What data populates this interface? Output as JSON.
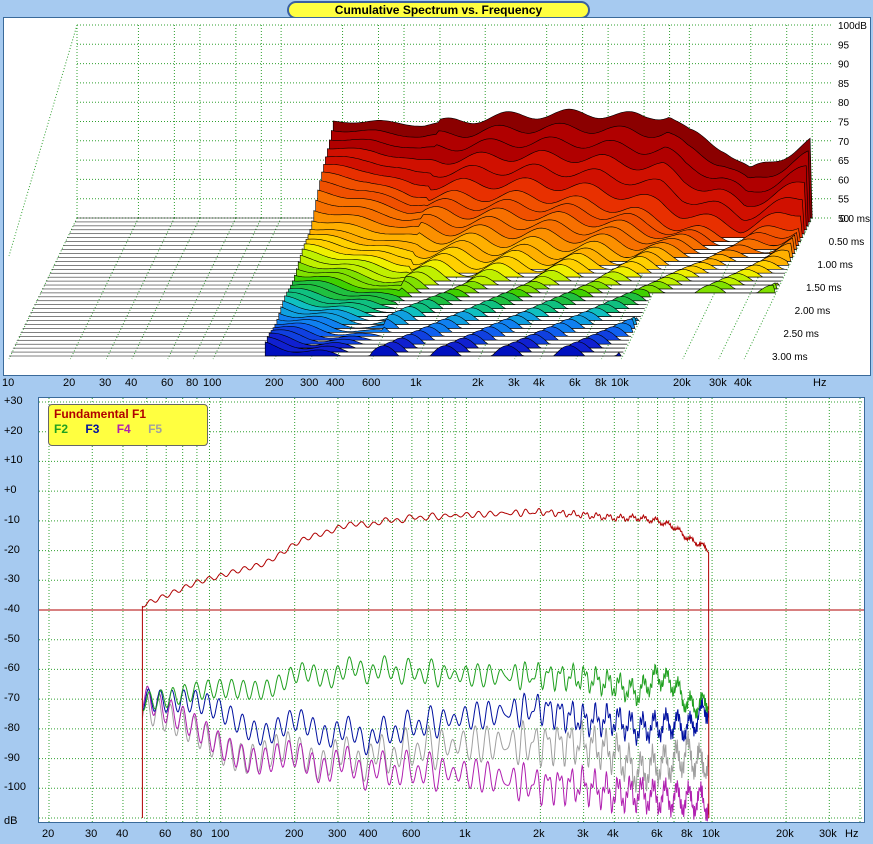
{
  "title": "Cumulative Spectrum vs. Frequency",
  "waterfall": {
    "db_labels": [
      "100dB",
      "95",
      "90",
      "85",
      "80",
      "75",
      "70",
      "65",
      "60",
      "55",
      "50"
    ],
    "time_labels": [
      "0.0 ms",
      "0.50 ms",
      "1.00 ms",
      "1.50 ms",
      "2.00 ms",
      "2.50 ms",
      "3.00 ms"
    ],
    "freq_labels": [
      "10",
      "20",
      "30",
      "40",
      "60",
      "80",
      "100",
      "200",
      "300",
      "400",
      "600",
      "1k",
      "2k",
      "3k",
      "4k",
      "6k",
      "8k",
      "10k",
      "20k",
      "30k",
      "40k",
      "Hz"
    ]
  },
  "distortion": {
    "y_labels": [
      "+30",
      "+20",
      "+10",
      "+0",
      "-10",
      "-20",
      "-30",
      "-40",
      "-50",
      "-60",
      "-70",
      "-80",
      "-90",
      "-100",
      "dB"
    ],
    "x_labels": [
      "20",
      "30",
      "40",
      "60",
      "80",
      "100",
      "200",
      "300",
      "400",
      "600",
      "1k",
      "2k",
      "3k",
      "4k",
      "6k",
      "8k",
      "10k",
      "20k",
      "30k",
      "Hz"
    ],
    "legend": {
      "f1": "Fundamental F1",
      "f2": "F2",
      "f3": "F3",
      "f4": "F4",
      "f5": "F5"
    }
  },
  "colors": {
    "f1": "#b00000",
    "f2": "#20a020",
    "f3": "#0010a0",
    "f4": "#b020b0",
    "f5": "#a0a0a0",
    "grid": "#30a030",
    "legend_bg": "#ffff40"
  },
  "chart_data": [
    {
      "type": "area",
      "title": "Cumulative Spectrum vs. Frequency",
      "xlabel": "Hz",
      "ylabel": "dB",
      "xscale": "log",
      "xlim": [
        10,
        50000
      ],
      "ylim": [
        50,
        100
      ],
      "series": [
        {
          "name": "0.0 ms",
          "x": [
            180,
            300,
            500,
            1000,
            2000,
            4000,
            6000,
            8000,
            10000,
            15000,
            20000,
            40000
          ],
          "values": [
            75,
            75,
            74,
            76,
            77,
            77,
            76,
            77,
            72,
            68,
            62,
            70
          ]
        },
        {
          "name": "0.50 ms",
          "x": [
            180,
            300,
            500,
            1000,
            2000,
            4000,
            6000,
            8000,
            10000,
            15000,
            20000,
            40000
          ],
          "values": [
            68,
            66,
            62,
            62,
            62,
            60,
            58,
            56,
            54,
            52,
            51,
            55
          ]
        },
        {
          "name": "1.00 ms",
          "x": [
            180,
            300,
            500,
            1000,
            2000,
            4000,
            6000,
            8000,
            10000,
            15000,
            20000,
            40000
          ],
          "values": [
            60,
            58,
            56,
            55,
            54,
            53,
            52,
            52,
            51,
            50,
            50,
            51
          ]
        },
        {
          "name": "1.50 ms",
          "x": [
            180,
            300,
            500,
            1000,
            2000,
            4000,
            6000,
            8000,
            10000
          ],
          "values": [
            57,
            55,
            52,
            50,
            50,
            50,
            50,
            50,
            50
          ]
        },
        {
          "name": "2.00 ms",
          "x": [
            180,
            300,
            500,
            1000,
            2000,
            4000,
            6000,
            8000,
            10000
          ],
          "values": [
            55,
            53,
            51,
            50,
            50,
            50,
            50,
            50,
            50
          ]
        },
        {
          "name": "2.50 ms",
          "x": [
            180,
            300,
            500,
            1000,
            2000,
            4000,
            6000,
            8000,
            10000
          ],
          "values": [
            54,
            52,
            50,
            50,
            50,
            50,
            50,
            50,
            50
          ]
        },
        {
          "name": "3.00 ms",
          "x": [
            180,
            300,
            500,
            1000,
            2000,
            4000,
            6000,
            8000,
            10000
          ],
          "values": [
            53,
            51,
            50,
            50,
            50,
            50,
            50,
            50,
            50
          ]
        }
      ]
    },
    {
      "type": "line",
      "xlabel": "Hz",
      "ylabel": "dB",
      "xscale": "log",
      "xlim": [
        20,
        40000
      ],
      "ylim": [
        -110,
        30
      ],
      "x": [
        48,
        60,
        80,
        100,
        150,
        200,
        300,
        400,
        600,
        1000,
        2000,
        3000,
        4000,
        5000,
        6000,
        7000,
        8000,
        9000,
        9700
      ],
      "series": [
        {
          "name": "Fundamental F1",
          "values": [
            -38,
            -35,
            -31,
            -29,
            -24,
            -18,
            -12,
            -11,
            -9,
            -8,
            -7,
            -8,
            -9,
            -9,
            -10,
            -12,
            -16,
            -18,
            -20
          ]
        },
        {
          "name": "F2",
          "values": [
            -70,
            -70,
            -69,
            -68,
            -65,
            -63,
            -61,
            -60,
            -61,
            -62,
            -62,
            -63,
            -65,
            -68,
            -62,
            -65,
            -72,
            -72,
            -70
          ]
        },
        {
          "name": "F3",
          "values": [
            -70,
            -72,
            -73,
            -75,
            -80,
            -79,
            -81,
            -83,
            -79,
            -76,
            -73,
            -77,
            -77,
            -80,
            -79,
            -78,
            -80,
            -75,
            -72
          ]
        },
        {
          "name": "F4",
          "values": [
            -70,
            -76,
            -82,
            -86,
            -89,
            -91,
            -92,
            -94,
            -94,
            -95,
            -99,
            -99,
            -102,
            -102,
            -103,
            -103,
            -104,
            -104,
            -105
          ]
        },
        {
          "name": "F5",
          "values": [
            -75,
            -79,
            -83,
            -86,
            -88,
            -89,
            -90,
            -90,
            -87,
            -85,
            -85,
            -85,
            -88,
            -95,
            -92,
            -91,
            -88,
            -92,
            -90
          ]
        }
      ],
      "annotations": [
        {
          "type": "hline",
          "value": -40
        }
      ]
    }
  ]
}
